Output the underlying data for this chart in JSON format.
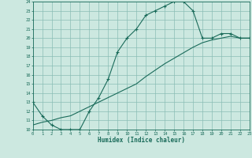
{
  "title": "",
  "xlabel": "Humidex (Indice chaleur)",
  "xlim": [
    0,
    23
  ],
  "ylim": [
    10,
    24
  ],
  "xticks": [
    0,
    1,
    2,
    3,
    4,
    5,
    6,
    7,
    8,
    9,
    10,
    11,
    12,
    13,
    14,
    15,
    16,
    17,
    18,
    19,
    20,
    21,
    22,
    23
  ],
  "yticks": [
    10,
    11,
    12,
    13,
    14,
    15,
    16,
    17,
    18,
    19,
    20,
    21,
    22,
    23,
    24
  ],
  "bg_color": "#cce8e0",
  "grid_color": "#8bbdb5",
  "line_color": "#1a6b5a",
  "curve1_x": [
    0,
    1,
    2,
    3,
    4,
    5,
    6,
    7,
    8,
    9,
    10,
    11,
    12,
    13,
    14,
    15,
    16,
    17,
    18,
    19,
    20,
    21,
    22,
    23
  ],
  "curve1_y": [
    13,
    11.5,
    10.5,
    10,
    10,
    10,
    12,
    13.5,
    15.5,
    18.5,
    20,
    21,
    22.5,
    23,
    23.5,
    24,
    24,
    23,
    20,
    20,
    20.5,
    20.5,
    20,
    20
  ],
  "curve2_x": [
    0,
    1,
    2,
    3,
    4,
    5,
    6,
    7,
    8,
    9,
    10,
    11,
    12,
    13,
    14,
    15,
    16,
    17,
    18,
    19,
    20,
    21,
    22,
    23
  ],
  "curve2_y": [
    10.5,
    10.8,
    11.0,
    11.3,
    11.5,
    12.0,
    12.5,
    13.0,
    13.5,
    14.0,
    14.5,
    15.0,
    15.8,
    16.5,
    17.2,
    17.8,
    18.4,
    19.0,
    19.5,
    19.8,
    20.0,
    20.2,
    20.0,
    20.0
  ],
  "figsize": [
    3.2,
    2.0
  ],
  "dpi": 100
}
